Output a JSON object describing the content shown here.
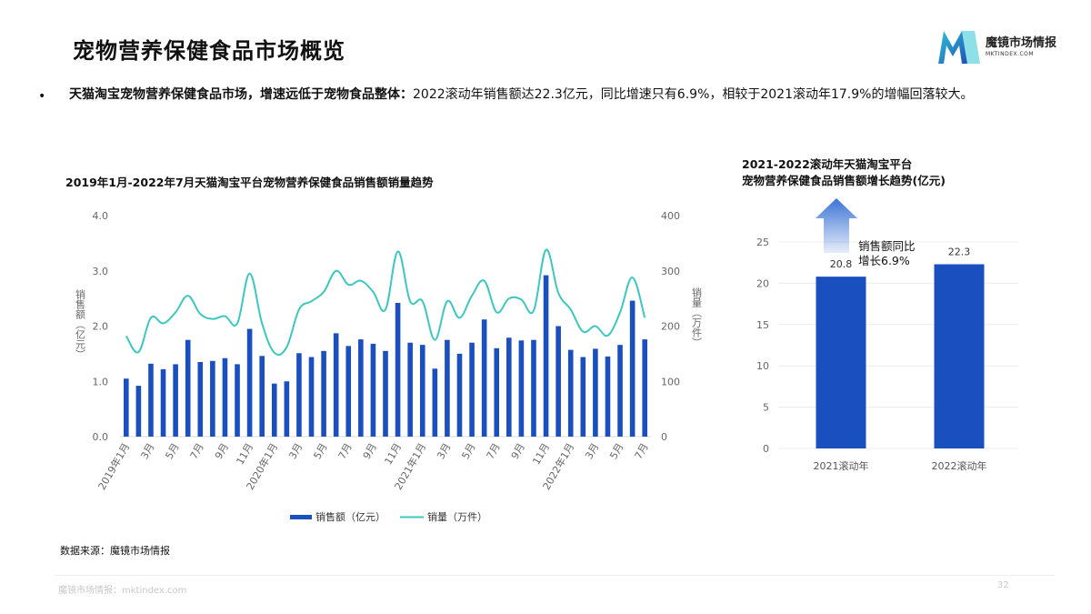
{
  "page": {
    "title": "宠物营养保健食品市场概览",
    "bullet": "•",
    "desc_bold": "天猫淘宝宠物营养保健食品市场，增速远低于宠物食品整体：",
    "desc_rest": "2022滚动年销售额达22.3亿元，同比增速只有6.9%，相较于2021滚动年17.9%的增幅回落较大。",
    "source": "数据来源：魔镜市场情报",
    "footer": "魔镜市场情报：mktindex.com",
    "page_number": "32"
  },
  "logo": {
    "name": "魔镜市场情报",
    "sub": "MKTINDEX.COM",
    "colors": [
      "#2fc4d6",
      "#1e4fb8"
    ]
  },
  "colors": {
    "bar": "#1a4fc0",
    "line": "#3cc8bf",
    "arrow": "#3b73d6"
  },
  "chart_data": [
    {
      "type": "bar",
      "title": "2019年1月-2022年7月天猫淘宝平台宠物营养保健食品销售额销量趋势",
      "ylabel": "销售额（亿元）",
      "y2label": "销量（万件）",
      "ylim": [
        0,
        4
      ],
      "y2lim": [
        0,
        400
      ],
      "yticks": [
        "0.0",
        "1.0",
        "2.0",
        "3.0",
        "4.0"
      ],
      "y2ticks": [
        "0",
        "100",
        "200",
        "300",
        "400"
      ],
      "grid": false,
      "legend": "bottom",
      "x_tick_labels": [
        "2019年1月",
        "3月",
        "5月",
        "7月",
        "9月",
        "11月",
        "2020年1月",
        "3月",
        "5月",
        "7月",
        "9月",
        "11月",
        "2021年1月",
        "3月",
        "5月",
        "7月",
        "9月",
        "11月",
        "2022年1月",
        "3月",
        "5月",
        "7月"
      ],
      "categories": [
        "2019-01",
        "2019-02",
        "2019-03",
        "2019-04",
        "2019-05",
        "2019-06",
        "2019-07",
        "2019-08",
        "2019-09",
        "2019-10",
        "2019-11",
        "2019-12",
        "2020-01",
        "2020-02",
        "2020-03",
        "2020-04",
        "2020-05",
        "2020-06",
        "2020-07",
        "2020-08",
        "2020-09",
        "2020-10",
        "2020-11",
        "2020-12",
        "2021-01",
        "2021-02",
        "2021-03",
        "2021-04",
        "2021-05",
        "2021-06",
        "2021-07",
        "2021-08",
        "2021-09",
        "2021-10",
        "2021-11",
        "2021-12",
        "2022-01",
        "2022-02",
        "2022-03",
        "2022-04",
        "2022-05",
        "2022-06",
        "2022-07"
      ],
      "series": [
        {
          "name": "销售额（亿元）",
          "kind": "bar",
          "axis": "left",
          "values": [
            1.05,
            0.92,
            1.32,
            1.22,
            1.31,
            1.75,
            1.35,
            1.37,
            1.42,
            1.31,
            1.95,
            1.46,
            0.96,
            1.0,
            1.51,
            1.44,
            1.55,
            1.87,
            1.64,
            1.76,
            1.68,
            1.55,
            2.42,
            1.7,
            1.66,
            1.23,
            1.75,
            1.5,
            1.7,
            2.12,
            1.6,
            1.79,
            1.74,
            1.75,
            2.92,
            2.0,
            1.57,
            1.44,
            1.59,
            1.45,
            1.66,
            2.46,
            1.76
          ]
        },
        {
          "name": "销量（万件）",
          "kind": "line",
          "axis": "right",
          "values": [
            182,
            153,
            215,
            205,
            225,
            255,
            222,
            213,
            218,
            205,
            295,
            205,
            152,
            162,
            230,
            245,
            262,
            300,
            275,
            282,
            262,
            230,
            335,
            245,
            245,
            175,
            245,
            215,
            255,
            282,
            225,
            250,
            248,
            228,
            338,
            260,
            230,
            190,
            200,
            183,
            225,
            288,
            215
          ]
        }
      ]
    },
    {
      "type": "bar",
      "title_line1": "2021-2022滚动年天猫淘宝平台",
      "title_line2": "宠物营养保健食品销售额增长趋势(亿元)",
      "ylim": [
        0,
        25
      ],
      "yticks": [
        "0",
        "5",
        "10",
        "15",
        "20",
        "25"
      ],
      "grid": true,
      "categories": [
        "2021滚动年",
        "2022滚动年"
      ],
      "values": [
        20.8,
        22.3
      ],
      "value_labels": [
        "20.8",
        "22.3"
      ],
      "annotation_line1": "销售额同比",
      "annotation_line2": "增长6.9%"
    }
  ]
}
